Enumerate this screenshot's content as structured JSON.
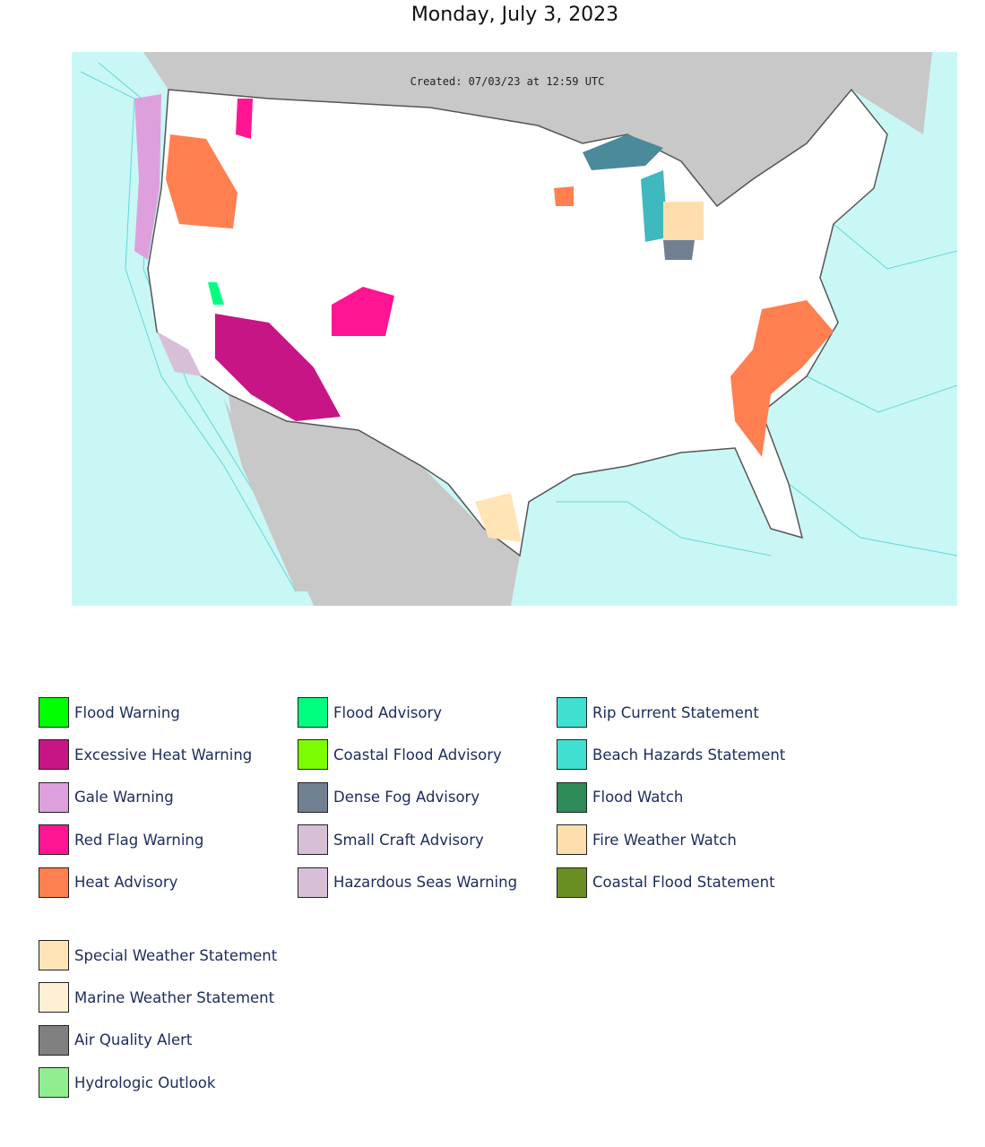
{
  "title": "Monday, July 3, 2023",
  "map": {
    "caption": "Created: 07/03/23 at 12:59 UTC"
  },
  "legend": {
    "columns": [
      [
        {
          "label": "Flood Warning",
          "color": "#00ff00"
        },
        {
          "label": "Excessive Heat Warning",
          "color": "#c71585"
        },
        {
          "label": "Gale Warning",
          "color": "#dda0dd"
        },
        {
          "label": "Red Flag Warning",
          "color": "#ff1493"
        },
        {
          "label": "Heat Advisory",
          "color": "#ff7f50"
        }
      ],
      [
        {
          "label": "Flood Advisory",
          "color": "#00ff7f"
        },
        {
          "label": "Coastal Flood Advisory",
          "color": "#7cfc00"
        },
        {
          "label": "Dense Fog Advisory",
          "color": "#708090"
        },
        {
          "label": "Small Craft Advisory",
          "color": "#d8bfd8"
        },
        {
          "label": "Hazardous Seas Warning",
          "color": "#d8bfd8"
        }
      ],
      [
        {
          "label": "Rip Current Statement",
          "color": "#40e0d0"
        },
        {
          "label": "Beach Hazards Statement",
          "color": "#40e0d0"
        },
        {
          "label": "Flood Watch",
          "color": "#2e8b57"
        },
        {
          "label": "Fire Weather Watch",
          "color": "#ffdead"
        },
        {
          "label": "Coastal Flood Statement",
          "color": "#6b8e23"
        }
      ]
    ],
    "extra": [
      {
        "label": "Special Weather Statement",
        "color": "#ffe4b5"
      },
      {
        "label": "Marine Weather Statement",
        "color": "#ffefd5"
      },
      {
        "label": "Air Quality Alert",
        "color": "#808080"
      },
      {
        "label": "Hydrologic Outlook",
        "color": "#90ee90"
      }
    ]
  }
}
